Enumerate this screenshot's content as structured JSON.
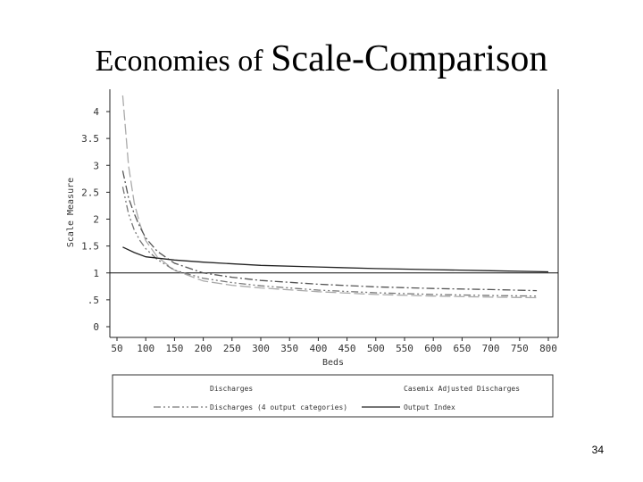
{
  "slide": {
    "title_part1": "Economies of ",
    "title_part2": "Scale-Comparison",
    "page_number": "34"
  },
  "chart_data": {
    "type": "line",
    "xlabel": "Beds",
    "ylabel": "Scale Measure",
    "xlim": [
      40,
      800
    ],
    "ylim": [
      0,
      4.3
    ],
    "xticks": [
      50,
      100,
      150,
      200,
      250,
      300,
      350,
      400,
      450,
      500,
      550,
      600,
      650,
      700,
      750,
      800
    ],
    "xtick_labels": [
      "50",
      "100",
      "150",
      "200",
      "250",
      "300",
      "350",
      "400",
      "450",
      "500",
      "550",
      "600",
      "650",
      "700",
      "750",
      "800"
    ],
    "yticks": [
      0,
      0.5,
      1,
      1.5,
      2,
      2.5,
      3,
      3.5,
      4
    ],
    "ytick_labels": [
      "0",
      ".5",
      "1",
      "1.5",
      "2",
      "2.5",
      "3",
      "3.5",
      "4"
    ],
    "reference_line": 1,
    "legend_position": "bottom",
    "series": [
      {
        "name": "Discharges",
        "color": "#aaaaaa",
        "dash": "12,4",
        "x": [
          60,
          70,
          80,
          90,
          100,
          120,
          150,
          200,
          250,
          300,
          400,
          500,
          600,
          700,
          780
        ],
        "y": [
          4.3,
          3.0,
          2.3,
          1.9,
          1.6,
          1.3,
          1.05,
          0.85,
          0.77,
          0.72,
          0.65,
          0.6,
          0.57,
          0.55,
          0.54
        ]
      },
      {
        "name": "Casemix Adjusted Discharges",
        "color": "#555555",
        "dash": "9,3,2,3",
        "x": [
          60,
          70,
          80,
          90,
          100,
          120,
          150,
          200,
          250,
          300,
          400,
          500,
          600,
          700,
          780
        ],
        "y": [
          2.9,
          2.4,
          2.1,
          1.85,
          1.65,
          1.4,
          1.18,
          1.0,
          0.92,
          0.86,
          0.79,
          0.74,
          0.71,
          0.69,
          0.67
        ]
      },
      {
        "name": "Discharges (4 output categories)",
        "color": "#777777",
        "dash": "8,3,2,3,2,3",
        "x": [
          60,
          70,
          80,
          90,
          100,
          120,
          150,
          200,
          250,
          300,
          400,
          500,
          600,
          700,
          780
        ],
        "y": [
          2.6,
          2.1,
          1.8,
          1.6,
          1.45,
          1.25,
          1.05,
          0.9,
          0.82,
          0.76,
          0.68,
          0.63,
          0.6,
          0.58,
          0.57
        ]
      },
      {
        "name": "Output Index",
        "color": "#222222",
        "dash": "",
        "x": [
          60,
          80,
          100,
          150,
          200,
          300,
          400,
          500,
          600,
          700,
          800
        ],
        "y": [
          1.48,
          1.38,
          1.3,
          1.24,
          1.2,
          1.14,
          1.11,
          1.08,
          1.06,
          1.04,
          1.02
        ]
      }
    ]
  }
}
